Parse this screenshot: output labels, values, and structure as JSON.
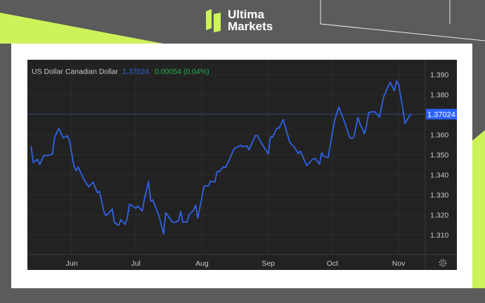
{
  "brand": {
    "name_line1": "Ultima",
    "name_line2": "Markets",
    "accent_color": "#cdf25a"
  },
  "chart_data": {
    "type": "line",
    "title": "US Dollar Canadian Dollar",
    "last_value": "1.37024",
    "change": "0.00054 (0.04%)",
    "series_color": "#2f62e6",
    "change_color": "#22b14c",
    "ylim": [
      1.303,
      1.394
    ],
    "yticks": [
      "1.390",
      "1.380",
      "1.360",
      "1.350",
      "1.340",
      "1.330",
      "1.320",
      "1.310"
    ],
    "xticks": [
      {
        "label": "Jun",
        "date": "Jun 1"
      },
      {
        "label": "Jul",
        "date": "Jul 1"
      },
      {
        "label": "Aug",
        "date": "Aug 1"
      },
      {
        "label": "Sep",
        "date": "Sep 1"
      },
      {
        "label": "Oct",
        "date": "Oct 1"
      },
      {
        "label": "Nov",
        "date": "Nov 1"
      }
    ],
    "grid": true,
    "points": [
      [
        "May 13",
        1.3543
      ],
      [
        "May 14",
        1.3461
      ],
      [
        "May 16",
        1.3477
      ],
      [
        "May 17",
        1.345
      ],
      [
        "May 19",
        1.3497
      ],
      [
        "May 20",
        1.3494
      ],
      [
        "May 23",
        1.3502
      ],
      [
        "May 24",
        1.3588
      ],
      [
        "May 26",
        1.3631
      ],
      [
        "May 27",
        1.3608
      ],
      [
        "May 28",
        1.3584
      ],
      [
        "May 30",
        1.3594
      ],
      [
        "May 31",
        1.3568
      ],
      [
        "Jun 2",
        1.3447
      ],
      [
        "Jun 3",
        1.342
      ],
      [
        "Jun 4",
        1.3439
      ],
      [
        "Jun 7",
        1.3371
      ],
      [
        "Jun 9",
        1.334
      ],
      [
        "Jun 11",
        1.3363
      ],
      [
        "Jun 13",
        1.3311
      ],
      [
        "Jun 14",
        1.3317
      ],
      [
        "Jun 16",
        1.3219
      ],
      [
        "Jun 17",
        1.3196
      ],
      [
        "Jun 18",
        1.3205
      ],
      [
        "Jun 20",
        1.3229
      ],
      [
        "Jun 21",
        1.3161
      ],
      [
        "Jun 23",
        1.3147
      ],
      [
        "Jun 24",
        1.3176
      ],
      [
        "Jun 26",
        1.3152
      ],
      [
        "Jun 27",
        1.3184
      ],
      [
        "Jun 28",
        1.3252
      ],
      [
        "Jun 29",
        1.3247
      ],
      [
        "Jul 1",
        1.3233
      ],
      [
        "Jul 2",
        1.3243
      ],
      [
        "Jul 4",
        1.3219
      ],
      [
        "Jul 5",
        1.3278
      ],
      [
        "Jul 7",
        1.3366
      ],
      [
        "Jul 8",
        1.3268
      ],
      [
        "Jul 9",
        1.3274
      ],
      [
        "Jul 12",
        1.319
      ],
      [
        "Jul 14",
        1.3105
      ],
      [
        "Jul 15",
        1.3211
      ],
      [
        "Jul 16",
        1.3196
      ],
      [
        "Jul 18",
        1.3164
      ],
      [
        "Jul 19",
        1.3161
      ],
      [
        "Jul 21",
        1.317
      ],
      [
        "Jul 22",
        1.3217
      ],
      [
        "Jul 23",
        1.3163
      ],
      [
        "Jul 25",
        1.3164
      ],
      [
        "Jul 26",
        1.3202
      ],
      [
        "Jul 28",
        1.3222
      ],
      [
        "Jul 29",
        1.3248
      ],
      [
        "Jul 30",
        1.3184
      ],
      [
        "Aug 1",
        1.329
      ],
      [
        "Aug 2",
        1.3344
      ],
      [
        "Aug 4",
        1.3344
      ],
      [
        "Aug 5",
        1.3368
      ],
      [
        "Aug 7",
        1.3363
      ],
      [
        "Aug 8",
        1.3415
      ],
      [
        "Aug 9",
        1.3415
      ],
      [
        "Aug 11",
        1.3439
      ],
      [
        "Aug 12",
        1.3436
      ],
      [
        "Aug 13",
        1.3457
      ],
      [
        "Aug 16",
        1.3529
      ],
      [
        "Aug 19",
        1.3547
      ],
      [
        "Aug 20",
        1.3539
      ],
      [
        "Aug 22",
        1.3544
      ],
      [
        "Aug 23",
        1.3524
      ],
      [
        "Aug 25",
        1.3573
      ],
      [
        "Aug 26",
        1.3596
      ],
      [
        "Aug 27",
        1.3594
      ],
      [
        "Aug 29",
        1.3553
      ],
      [
        "Sep 1",
        1.3504
      ],
      [
        "Sep 2",
        1.3588
      ],
      [
        "Sep 3",
        1.3588
      ],
      [
        "Sep 5",
        1.3632
      ],
      [
        "Sep 6",
        1.3632
      ],
      [
        "Sep 8",
        1.3675
      ],
      [
        "Sep 9",
        1.3637
      ],
      [
        "Sep 11",
        1.3564
      ],
      [
        "Sep 12",
        1.3549
      ],
      [
        "Sep 13",
        1.3541
      ],
      [
        "Sep 15",
        1.3506
      ],
      [
        "Sep 16",
        1.3518
      ],
      [
        "Sep 19",
        1.3445
      ],
      [
        "Sep 20",
        1.3457
      ],
      [
        "Sep 22",
        1.348
      ],
      [
        "Sep 23",
        1.348
      ],
      [
        "Sep 25",
        1.3452
      ],
      [
        "Sep 26",
        1.3509
      ],
      [
        "Sep 27",
        1.3492
      ],
      [
        "Sep 29",
        1.3485
      ],
      [
        "Oct 2",
        1.3669
      ],
      [
        "Oct 4",
        1.3738
      ],
      [
        "Oct 7",
        1.3655
      ],
      [
        "Oct 9",
        1.3588
      ],
      [
        "Oct 10",
        1.358
      ],
      [
        "Oct 11",
        1.3588
      ],
      [
        "Oct 13",
        1.3685
      ],
      [
        "Oct 14",
        1.3652
      ],
      [
        "Oct 16",
        1.3605
      ],
      [
        "Oct 17",
        1.3648
      ],
      [
        "Oct 18",
        1.3711
      ],
      [
        "Oct 20",
        1.3714
      ],
      [
        "Oct 21",
        1.3713
      ],
      [
        "Oct 23",
        1.3687
      ],
      [
        "Oct 25",
        1.3789
      ],
      [
        "Oct 28",
        1.3862
      ],
      [
        "Oct 30",
        1.3819
      ],
      [
        "Oct 31",
        1.3868
      ],
      [
        "Nov 1",
        1.3851
      ],
      [
        "Nov 3",
        1.3728
      ],
      [
        "Nov 4",
        1.3655
      ],
      [
        "Nov 6",
        1.3693
      ],
      [
        "Nov 7",
        1.37024
      ]
    ]
  }
}
